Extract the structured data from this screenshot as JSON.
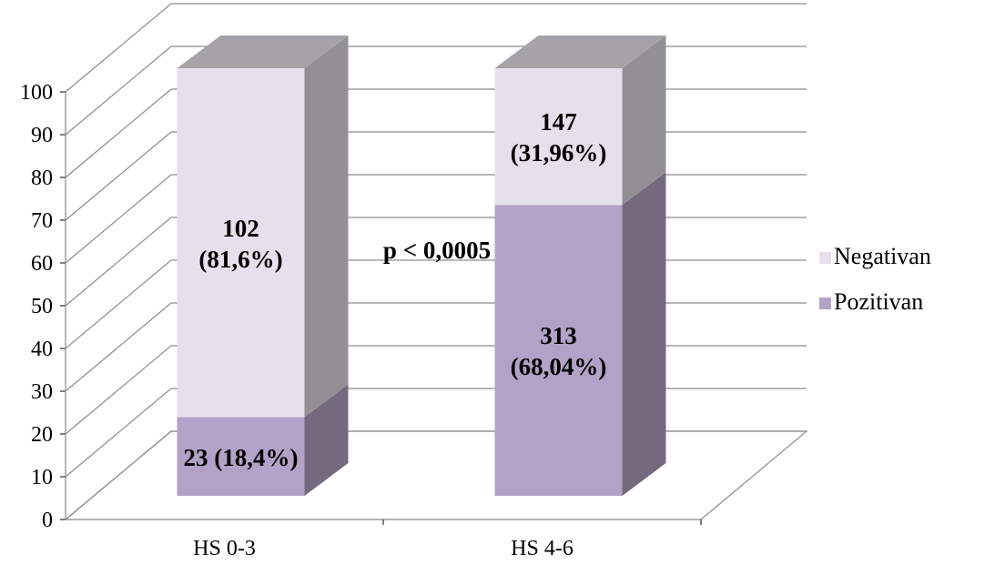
{
  "chart_data": {
    "type": "bar",
    "stacked": true,
    "three_d": true,
    "categories": [
      "HS 0-3",
      "HS 4-6"
    ],
    "series": [
      {
        "name": "Pozitivan",
        "values": [
          18.4,
          68.04
        ],
        "labels": [
          "23 (18,4%)",
          "313\n(68,04%)"
        ],
        "color": "#b3a2c7"
      },
      {
        "name": "Negativan",
        "values": [
          81.6,
          31.96
        ],
        "labels": [
          "102\n(81,6%)",
          "147\n(31,96%)"
        ],
        "color": "#e6e0ec"
      }
    ],
    "ylim": [
      0,
      100
    ],
    "yticks": [
      "0",
      "10",
      "20",
      "30",
      "40",
      "50",
      "60",
      "70",
      "80",
      "90",
      "100"
    ],
    "grid": true,
    "legend_position": "right",
    "annotation": "p < 0,0005",
    "colors": {
      "positive_front": "#b3a2c7",
      "positive_side": "#75697f",
      "negative_front": "#e6e0ec",
      "negative_side": "#939095",
      "top": "#a5a3a8",
      "grid": "#8c8c8c"
    }
  }
}
